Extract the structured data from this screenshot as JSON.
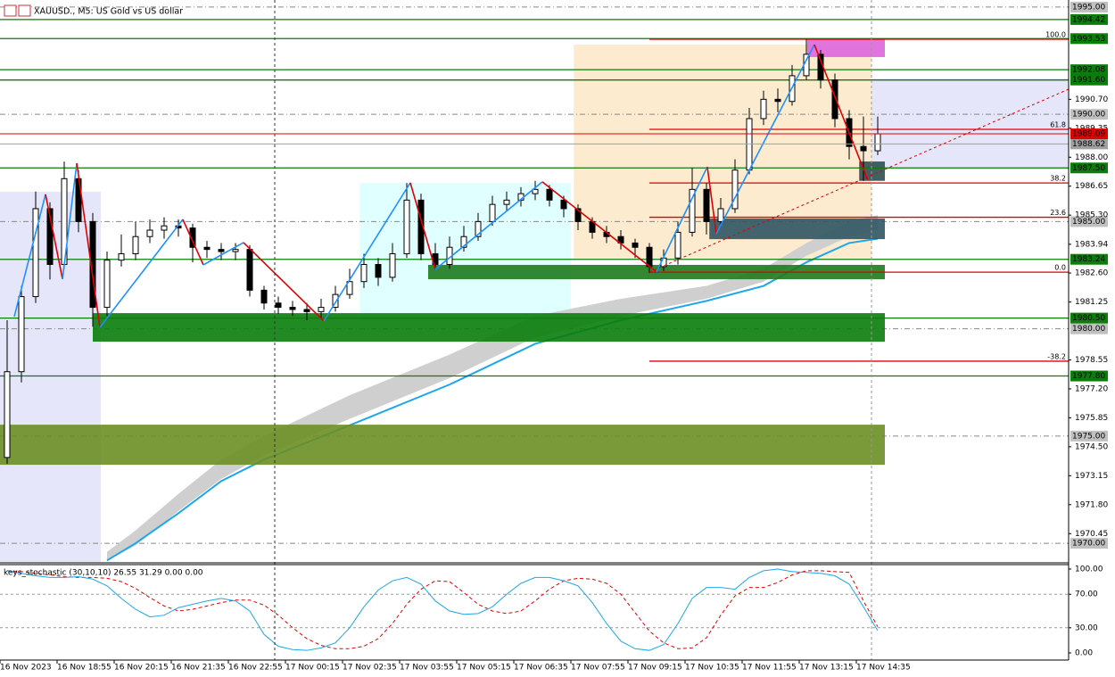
{
  "chart_data": {
    "type": "candlestick",
    "title": "XAUUSD., M5:  US Gold vs US dollar",
    "categories": [
      "16 Nov 2023",
      null,
      null,
      null,
      "16 Nov 18:55",
      null,
      null,
      null,
      "16 Nov 20:15",
      null,
      null,
      null,
      "16 Nov 21:35",
      null,
      null,
      null,
      "16 Nov 22:55",
      null,
      null,
      null,
      "17 Nov 00:15",
      null,
      null,
      null,
      "17 Nov 02:35",
      null,
      null,
      null,
      "17 Nov 03:55",
      null,
      null,
      null,
      "17 Nov 05:15",
      null,
      null,
      null,
      "17 Nov 06:35",
      null,
      null,
      null,
      "17 Nov 07:55",
      null,
      null,
      null,
      "17 Nov 09:15",
      null,
      null,
      null,
      "17 Nov 10:35",
      null,
      null,
      null,
      "17 Nov 11:55",
      null,
      null,
      null,
      "17 Nov 13:15",
      null,
      null,
      null,
      "17 Nov 14:35",
      null
    ],
    "open": [
      1974,
      1978,
      1981.5,
      1985.6,
      1983,
      1987,
      1985,
      1981,
      1983.2,
      1983.5,
      1984.3,
      1984.6,
      1984.8,
      1984.7,
      1983.8,
      1983.7,
      1983.6,
      1983.7,
      1981.8,
      1981.2,
      1981,
      1980.9,
      1980.8,
      1981,
      1981.6,
      1982.2,
      1983,
      1982.4,
      1983.5,
      1986,
      1983.5,
      1983,
      1983.8,
      1984.3,
      1985,
      1985.8,
      1986,
      1986.3,
      1986.5,
      1986,
      1985.6,
      1985,
      1984.5,
      1984.3,
      1984,
      1983.8,
      1982.9,
      1983.3,
      1984.5,
      1986.5,
      1985,
      1985.6,
      1987.4,
      1989.8,
      1990.7,
      1990.6,
      1991.8,
      1992.8,
      1991.6,
      1989.8,
      1988.5,
      1988.3
    ],
    "high": [
      1980.4,
      1982,
      1986.4,
      1985.9,
      1987.8,
      1987.4,
      1985.4,
      1983.6,
      1984.4,
      1985,
      1985.1,
      1985.2,
      1985.1,
      1984.9,
      1984.1,
      1984,
      1984,
      1983.9,
      1982,
      1981.5,
      1981.3,
      1981.2,
      1981.4,
      1982,
      1982.8,
      1983.5,
      1983.3,
      1984,
      1986.8,
      1986.3,
      1984,
      1984.3,
      1984.8,
      1985.4,
      1986.2,
      1986.4,
      1986.6,
      1986.9,
      1986.7,
      1986.2,
      1985.8,
      1985.2,
      1984.8,
      1984.6,
      1984.2,
      1984,
      1983.7,
      1985,
      1987.5,
      1986.8,
      1986.1,
      1987.9,
      1990.3,
      1991.1,
      1991.2,
      1992.3,
      1993.5,
      1993,
      1991.9,
      1990.2,
      1989.9,
      1989.9
    ],
    "low": [
      1973.7,
      1977.5,
      1981.2,
      1982.3,
      1982.8,
      1984.5,
      1980.1,
      1980.6,
      1982.9,
      1983.2,
      1984,
      1984.2,
      1984.3,
      1983.1,
      1983.3,
      1983.2,
      1983.2,
      1981.5,
      1980.9,
      1980.7,
      1980.6,
      1980.4,
      1980.5,
      1980.8,
      1981.4,
      1981.9,
      1982,
      1982.2,
      1983.3,
      1983.2,
      1982.8,
      1982.8,
      1983.6,
      1984.1,
      1984.8,
      1985.5,
      1985.7,
      1986,
      1985.7,
      1985.2,
      1984.6,
      1984.2,
      1984,
      1983.7,
      1983.3,
      1982.6,
      1982.7,
      1983,
      1984.3,
      1984.4,
      1984.8,
      1985.4,
      1987.2,
      1989.5,
      1990.1,
      1990.4,
      1991.6,
      1991.2,
      1989.4,
      1987.9,
      1986.9,
      1988.1
    ],
    "close": [
      1978,
      1981.5,
      1985.6,
      1983,
      1987,
      1985,
      1981,
      1983.2,
      1983.5,
      1984.3,
      1984.6,
      1984.8,
      1984.7,
      1983.8,
      1983.7,
      1983.6,
      1983.7,
      1981.8,
      1981.2,
      1981,
      1980.9,
      1980.8,
      1981,
      1981.6,
      1982.2,
      1983,
      1982.4,
      1983.5,
      1986,
      1983.5,
      1983,
      1983.8,
      1984.3,
      1985,
      1985.8,
      1986,
      1986.3,
      1986.5,
      1986,
      1985.6,
      1985,
      1984.5,
      1984.3,
      1984,
      1983.8,
      1982.9,
      1983.3,
      1984.5,
      1986.5,
      1985,
      1985.6,
      1987.4,
      1989.8,
      1990.7,
      1990.6,
      1991.8,
      1992.8,
      1991.6,
      1989.8,
      1988.5,
      1988.3,
      1989.09
    ],
    "ylim": [
      1969.13,
      1995.33
    ],
    "yticks": [
      {
        "value": 1990.7,
        "label": "1990.70"
      },
      {
        "value": 1989.35,
        "label": "1989.35"
      },
      {
        "value": 1988,
        "label": "1988.00"
      },
      {
        "value": 1986.65,
        "label": "1986.65"
      },
      {
        "value": 1985.3,
        "label": "1985.30"
      },
      {
        "value": 1983.94,
        "label": "1983.94"
      },
      {
        "value": 1982.6,
        "label": "1982.60"
      },
      {
        "value": 1981.25,
        "label": "1981.25"
      },
      {
        "value": 1978.55,
        "label": "1978.55"
      },
      {
        "value": 1977.2,
        "label": "1977.20"
      },
      {
        "value": 1975.85,
        "label": "1975.85"
      },
      {
        "value": 1974.5,
        "label": "1974.50"
      },
      {
        "value": 1973.15,
        "label": "1973.15"
      },
      {
        "value": 1971.8,
        "label": "1971.80"
      },
      {
        "value": 1970.45,
        "label": "1970.45"
      }
    ],
    "round_levels": [
      {
        "value": 1995,
        "label": "1995.00"
      },
      {
        "value": 1990,
        "label": "1990.00"
      },
      {
        "value": 1985,
        "label": "1985.00"
      },
      {
        "value": 1980,
        "label": "1980.00"
      },
      {
        "value": 1975,
        "label": "1975.00"
      },
      {
        "value": 1970,
        "label": "1970.00"
      }
    ],
    "levels": [
      1994.42,
      1993.53,
      1992.08,
      {
        "value": 1991.6,
        "label": "1991.60"
      },
      {
        "value": 1987.5,
        "label": "1987.50"
      },
      1983.24,
      {
        "value": 1980.5,
        "label": "1980.50"
      },
      {
        "value": 1977.8,
        "label": "1977.80"
      }
    ],
    "level_color": "#0a7d0a",
    "bid": 1989.09,
    "bid_color": "#e00000",
    "ask": 1988.62,
    "ask_color": "#a0a0a0",
    "zones": [
      {
        "x": [
          -0.5,
          6.56
        ],
        "price": [
          1986.39,
          1969.13
        ],
        "color": "#e6e6fa"
      },
      {
        "x": [
          24.7,
          39.5
        ],
        "price": [
          1986.8,
          1980.35
        ],
        "color": "#e0ffff"
      },
      {
        "x": [
          39.7,
          60.56
        ],
        "price": [
          1993.25,
          1983.27
        ],
        "color": "#fdebd0"
      },
      {
        "x": [
          60.56,
          74.4
        ],
        "price": [
          1991.67,
          1987.43
        ],
        "color": "#e6e6fa"
      }
    ],
    "top_zones": [
      {
        "x": [
          56.06,
          61.5
        ],
        "price": [
          1993.5,
          1992.67
        ],
        "color": "#dd66dd"
      },
      {
        "x": [
          59.7,
          61.5
        ],
        "price": [
          1987.8,
          1986.9
        ],
        "color": "#2f4f4f"
      },
      {
        "x": [
          49.2,
          61.5
        ],
        "price": [
          1985.14,
          1984.18
        ],
        "color": "#2f5560"
      },
      {
        "x": [
          29.5,
          61.5
        ],
        "price": [
          1982.98,
          1982.31
        ],
        "color": "#1e7b1e"
      },
      {
        "x": [
          6,
          61.5
        ],
        "price": [
          1980.73,
          1979.4
        ],
        "color": "#0a7d0a"
      },
      {
        "x": [
          -0.5,
          61.5
        ],
        "price": [
          1975.53,
          1973.66
        ],
        "color": "#6b8e23"
      }
    ],
    "ma": {
      "x": [
        7,
        9,
        12,
        15,
        18,
        24,
        31,
        37,
        43,
        49,
        53,
        56,
        59,
        61
      ],
      "values": [
        1969.2,
        1970,
        1971.4,
        1972.9,
        1973.9,
        1975.5,
        1977.4,
        1979.3,
        1980.4,
        1981.3,
        1982,
        1983.1,
        1984,
        1984.2
      ],
      "upper": [
        1969.6,
        1970.6,
        1972.3,
        1973.9,
        1975,
        1976.9,
        1978.8,
        1980.6,
        1981.4,
        1982,
        1982.8,
        1984,
        1985,
        1985.3
      ],
      "lower": [
        1969.2,
        1969.9,
        1971.5,
        1973,
        1974.1,
        1975.8,
        1977.7,
        1979.6,
        1980.6,
        1981.4,
        1982.2,
        1983.4,
        1984.3,
        1984.6
      ],
      "color": "#1ea7e8",
      "band_color": "#cfcfcf"
    },
    "zigzag": {
      "x": [
        0.5,
        2.69,
        3.88,
        4.88,
        6.5,
        12.31,
        13.75,
        16.56,
        22.19,
        28.25,
        30,
        37.5,
        45.5,
        49.06,
        49.69,
        56.56,
        60.31
      ],
      "values": [
        1980.57,
        1986.27,
        1982.32,
        1987.72,
        1980.07,
        1985.1,
        1982.98,
        1984.02,
        1980.36,
        1986.81,
        1982.77,
        1986.85,
        1982.65,
        1987.55,
        1984.43,
        1993.25,
        1986.93
      ],
      "up_color": "#1e90ff",
      "down_color": "#e00000"
    },
    "fib": {
      "start": 45,
      "color": "#e00000",
      "ratios": [
        "100.0",
        "61.8",
        "38.2",
        "23.6",
        "0.0",
        "-38.2"
      ],
      "prices": [
        1993.5,
        1989.3,
        1986.8,
        1985.2,
        1982.64,
        1978.49
      ]
    },
    "indicator": {
      "label": "keys_stochastic (30,10,10) 26.55 31.29 0.00 0.00",
      "ylim": [
        0,
        100
      ],
      "yticks": [
        {
          "value": 100,
          "label": "100.00"
        },
        {
          "value": 70,
          "label": "70.00"
        },
        {
          "value": 30,
          "label": "30.00"
        },
        {
          "value": 0,
          "label": "0.00"
        }
      ],
      "k": [
        98,
        95,
        92,
        90,
        90,
        91,
        88,
        80,
        65,
        52,
        43,
        45,
        54,
        58,
        62,
        65,
        62,
        50,
        22,
        8,
        4,
        3,
        6,
        12,
        30,
        55,
        75,
        86,
        90,
        82,
        62,
        50,
        46,
        47,
        55,
        70,
        83,
        90,
        90,
        86,
        80,
        60,
        35,
        14,
        5,
        3,
        10,
        35,
        65,
        78,
        78,
        76,
        90,
        98,
        100,
        97,
        96,
        95,
        92,
        82,
        55,
        26.55
      ],
      "d": [
        98,
        97,
        95,
        93,
        91,
        90,
        90,
        89,
        85,
        77,
        66,
        56,
        50,
        52,
        56,
        60,
        63,
        63,
        57,
        45,
        30,
        17,
        9,
        5,
        5,
        8,
        17,
        35,
        58,
        76,
        86,
        85,
        72,
        58,
        50,
        47,
        50,
        62,
        76,
        86,
        89,
        88,
        83,
        70,
        48,
        26,
        12,
        5,
        6,
        18,
        45,
        68,
        78,
        78,
        84,
        93,
        98,
        98,
        97,
        96,
        62,
        31.29
      ],
      "k_color": "#1ea7e8",
      "d_color": "#e00000"
    }
  }
}
